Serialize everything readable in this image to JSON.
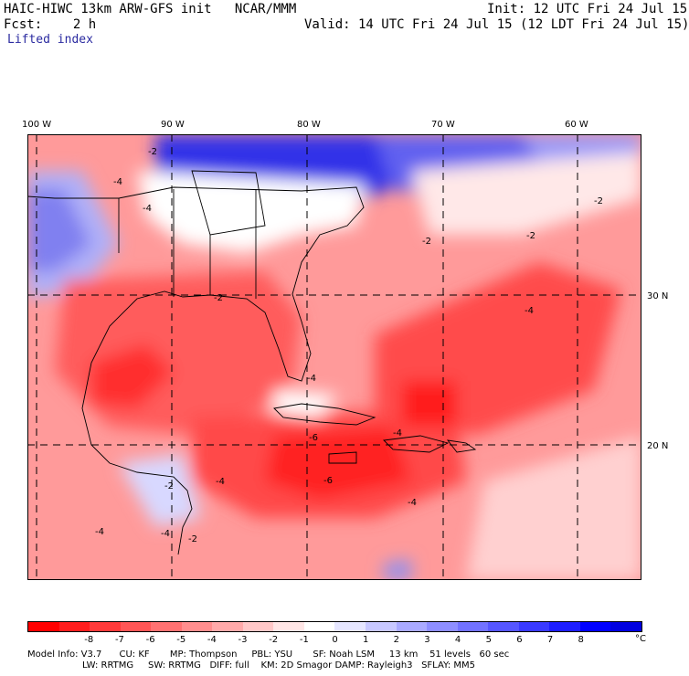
{
  "header": {
    "model_title": "HAIC-HIWC 13km ARW-GFS init   NCAR/MMM",
    "init_time": "Init: 12 UTC Fri 24 Jul 15",
    "fcst_label": "Fcst:    2 h",
    "valid_time": "Valid: 14 UTC Fri 24 Jul 15 (12 LDT Fri 24 Jul 15)",
    "field_name": "Lifted index"
  },
  "map": {
    "lon_labels": [
      "100 W",
      "90 W",
      "80 W",
      "70 W",
      "60 W"
    ],
    "lat_labels": [
      "30 N",
      "20 N"
    ],
    "contour_labels": [
      "-2",
      "-4",
      "-4",
      "-2",
      "-2",
      "-2",
      "-2",
      "-4",
      "-4",
      "-6",
      "-6",
      "-4",
      "-4",
      "-2",
      "-4",
      "-4",
      "-2",
      "-4"
    ]
  },
  "colorbar": {
    "unit": "°C",
    "ticks": [
      "-8",
      "-7",
      "-6",
      "-5",
      "-4",
      "-3",
      "-2",
      "-1",
      "0",
      "1",
      "2",
      "3",
      "4",
      "5",
      "6",
      "7",
      "8"
    ],
    "colors": [
      "#ff0000",
      "#ff1e1e",
      "#ff3a3a",
      "#ff5656",
      "#ff7272",
      "#ff8e8e",
      "#ffaaaa",
      "#ffc8c8",
      "#ffe6e6",
      "#ffffff",
      "#e6e6ff",
      "#c8c8ff",
      "#aaaaff",
      "#8e8eff",
      "#7272ff",
      "#5656ff",
      "#3a3aff",
      "#1e1eff",
      "#0000ff",
      "#0000e0"
    ]
  },
  "model_info": {
    "line1": "Model Info: V3.7      CU: KF       MP: Thompson     PBL: YSU       SF: Noah LSM     13 km    51 levels   60 sec",
    "line2": "LW: RRTMG     SW: RRTMG   DIFF: full    KM: 2D Smagor DAMP: Rayleigh3   SFLAY: MM5"
  }
}
